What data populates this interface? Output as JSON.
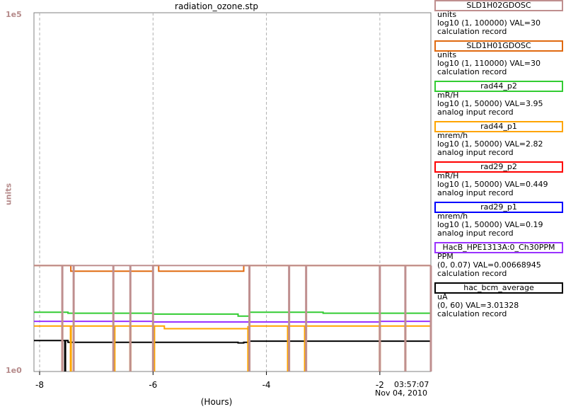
{
  "chart_data": {
    "type": "line",
    "title": "radiation_ozone.stp",
    "xlabel": "(Hours)",
    "ylabel": "units",
    "y_max_label": "1e5",
    "y_min_label": "1e0",
    "x_ticks": [
      "-8",
      "-6",
      "-4",
      "-2"
    ],
    "x_tick_values": [
      -8,
      -6,
      -4,
      -2
    ],
    "xlim": [
      -8.1,
      -1.1
    ],
    "yscale": "log",
    "ylim": [
      1,
      100000
    ],
    "end_time": "03:57:07",
    "end_date": "Nov 04, 2010",
    "grid": true,
    "series": [
      {
        "name": "hac_bcm_average",
        "color": "#000000",
        "x": [
          -8.1,
          -7.6,
          -7.5,
          -6.0,
          -4.5,
          -4.4,
          -4.3,
          -1.1
        ],
        "y": [
          2.7,
          2.7,
          2.55,
          2.55,
          2.5,
          2.55,
          2.65,
          2.65
        ]
      },
      {
        "name": "HacB_HPE1313A:0_Ch30PPM",
        "color": "#9933ff",
        "x": [
          -8.1,
          -6.0,
          -4.0,
          -2.0,
          -1.1
        ],
        "y": [
          5.0,
          4.9,
          4.9,
          5.0,
          5.0
        ]
      },
      {
        "name": "rad44_p1",
        "color": "#ffa500",
        "x": [
          -8.1,
          -7.5,
          -6.0,
          -5.8,
          -4.5,
          -4.3,
          -4.0,
          -1.1
        ],
        "y": [
          4.3,
          4.3,
          4.3,
          3.95,
          3.95,
          4.3,
          4.3,
          4.3
        ]
      },
      {
        "name": "rad44_p2",
        "color": "#33cc33",
        "x": [
          -8.1,
          -7.5,
          -6.0,
          -4.5,
          -4.3,
          -3.0,
          -1.1
        ],
        "y": [
          6.7,
          6.5,
          6.3,
          5.9,
          6.7,
          6.5,
          6.3
        ]
      },
      {
        "name": "SLD1H01GDOSC",
        "color": "#e06a10",
        "x": [
          -8.1,
          -7.5,
          -7.45,
          -6.6,
          -6.0,
          -5.9,
          -4.5,
          -4.4,
          -1.1
        ],
        "y": [
          30,
          30,
          25,
          25,
          30,
          25,
          25,
          30,
          30
        ]
      },
      {
        "name": "SLD1H02GDOSC",
        "color": "#bf8f8f",
        "x": [
          -8.1,
          -1.1
        ],
        "y": [
          30,
          30
        ]
      }
    ],
    "dropouts": {
      "SLD1H02GDOSC": [
        -7.6,
        -7.4,
        -6.7,
        -6.4,
        -6.0,
        -4.3,
        -3.6,
        -3.3,
        -2.0,
        -1.55,
        -1.1
      ],
      "rad44_p1": [
        -7.6,
        -7.45,
        -6.68,
        -6.4,
        -5.98,
        -4.32,
        -3.62,
        -3.32,
        -2.0,
        -1.55,
        -1.1
      ],
      "hac_bcm_average": [
        -7.55
      ]
    }
  },
  "legend": [
    {
      "name": "SLD1H02GDOSC",
      "color": "#bf8f8f",
      "units": "units",
      "range": "log10 (1, 100000) VAL=30",
      "record": "calculation record"
    },
    {
      "name": "SLD1H01GDOSC",
      "color": "#e06a10",
      "units": "units",
      "range": "log10 (1, 110000) VAL=30",
      "record": "calculation record"
    },
    {
      "name": "rad44_p2",
      "color": "#33cc33",
      "units": "mR/H",
      "range": "log10 (1, 50000) VAL=3.95",
      "record": "analog input record"
    },
    {
      "name": "rad44_p1",
      "color": "#ffa500",
      "units": "mrem/h",
      "range": "log10 (1, 50000) VAL=2.82",
      "record": "analog input record"
    },
    {
      "name": "rad29_p2",
      "color": "#ff0000",
      "units": "mR/H",
      "range": "log10 (1, 50000) VAL=0.449",
      "record": "analog input record"
    },
    {
      "name": "rad29_p1",
      "color": "#0000ff",
      "units": "mrem/h",
      "range": "log10 (1, 50000) VAL=0.19",
      "record": "analog input record"
    },
    {
      "name": "HacB_HPE1313A:0_Ch30PPM",
      "color": "#9933ff",
      "units": "PPM",
      "range": "(0, 0.07) VAL=0.00668945",
      "record": "calculation record"
    },
    {
      "name": "hac_bcm_average",
      "color": "#000000",
      "units": "uA",
      "range": "(0, 60) VAL=3.01328",
      "record": "calculation record"
    }
  ]
}
